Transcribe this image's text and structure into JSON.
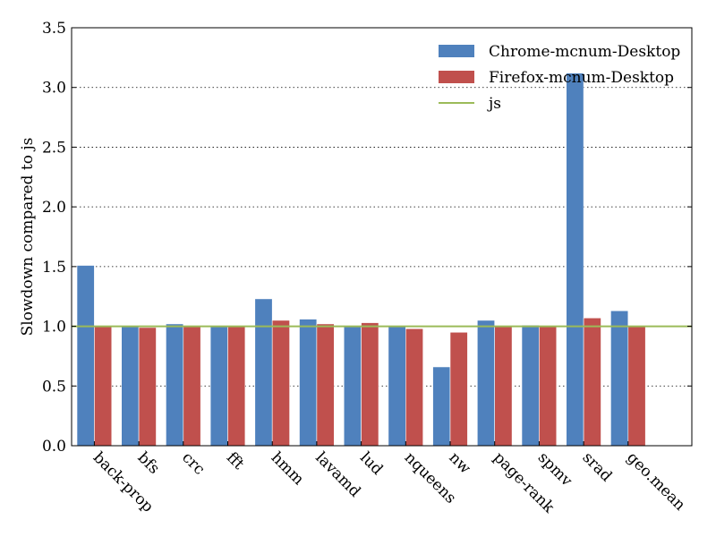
{
  "chart_data": {
    "type": "bar",
    "title": "",
    "xlabel": "",
    "ylabel": "Slowdown compared to js",
    "ylim": [
      0,
      3.5
    ],
    "yticks": [
      "0.0",
      "0.5",
      "1.0",
      "1.5",
      "2.0",
      "2.5",
      "3.0",
      "3.5"
    ],
    "grid": "horizontal dotted",
    "legend_position": "top-right",
    "categories": [
      "back-prop",
      "bfs",
      "crc",
      "fft",
      "hmm",
      "lavamd",
      "lud",
      "nqueens",
      "nw",
      "page-rank",
      "spmv",
      "srad",
      "geo.mean"
    ],
    "series": [
      {
        "name": "Chrome-mcnum-Desktop",
        "color": "#4f81bd",
        "values": [
          1.51,
          1.0,
          1.02,
          1.0,
          1.23,
          1.06,
          1.0,
          1.0,
          0.66,
          1.05,
          1.01,
          3.12,
          1.13
        ]
      },
      {
        "name": "Firefox-mcnum-Desktop",
        "color": "#c0504d",
        "values": [
          1.0,
          0.99,
          1.0,
          1.0,
          1.05,
          1.02,
          1.03,
          0.98,
          0.95,
          1.0,
          1.0,
          1.07,
          1.0
        ]
      }
    ],
    "reference_line": {
      "name": "js",
      "value": 1.0,
      "color": "#9bbb59"
    }
  }
}
